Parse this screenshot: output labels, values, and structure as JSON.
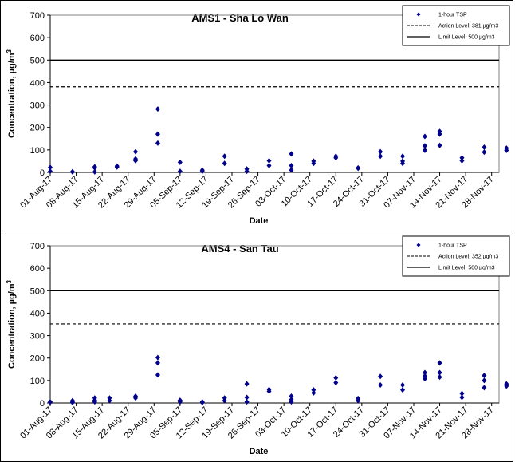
{
  "chart_data": [
    {
      "type": "scatter",
      "title": "AMS1 - Sha Lo Wan",
      "xlabel": "Date",
      "ylabel": "Concentration, µg/m",
      "ylabel_sup": "3",
      "ylim": [
        0,
        700
      ],
      "yticks": [
        "0",
        "100",
        "200",
        "300",
        "400",
        "500",
        "600",
        "700"
      ],
      "xlim": [
        "01-Aug-17",
        "30-Nov-17"
      ],
      "xticks": [
        "01-Aug-17",
        "08-Aug-17",
        "15-Aug-17",
        "22-Aug-17",
        "29-Aug-17",
        "05-Sep-17",
        "12-Sep-17",
        "19-Sep-17",
        "26-Sep-17",
        "03-Oct-17",
        "10-Oct-17",
        "17-Oct-17",
        "24-Oct-17",
        "31-Oct-17",
        "07-Nov-17",
        "14-Nov-17",
        "21-Nov-17",
        "28-Nov-17"
      ],
      "legend": {
        "position": "top-right",
        "entries": [
          {
            "label": "1-hour TSP",
            "style": "marker"
          },
          {
            "label": "Action Level: 381 µg/m3",
            "style": "dashed"
          },
          {
            "label": "Limit Level: 500 µg/m3",
            "style": "solid"
          }
        ]
      },
      "action_level": 381,
      "limit_level": 500,
      "series": [
        {
          "marker_color": "#00008B",
          "points": [
            [
              "2017-08-01",
              22
            ],
            [
              "2017-08-01",
              5
            ],
            [
              "2017-08-07",
              3
            ],
            [
              "2017-08-07",
              2
            ],
            [
              "2017-08-13",
              25
            ],
            [
              "2017-08-13",
              20
            ],
            [
              "2017-08-13",
              2
            ],
            [
              "2017-08-19",
              28
            ],
            [
              "2017-08-19",
              24
            ],
            [
              "2017-08-24",
              92
            ],
            [
              "2017-08-24",
              60
            ],
            [
              "2017-08-24",
              52
            ],
            [
              "2017-08-30",
              282
            ],
            [
              "2017-08-30",
              170
            ],
            [
              "2017-08-30",
              130
            ],
            [
              "2017-09-05",
              45
            ],
            [
              "2017-09-05",
              5
            ],
            [
              "2017-09-11",
              10
            ],
            [
              "2017-09-11",
              5
            ],
            [
              "2017-09-17",
              72
            ],
            [
              "2017-09-17",
              40
            ],
            [
              "2017-09-23",
              15
            ],
            [
              "2017-09-23",
              5
            ],
            [
              "2017-09-29",
              52
            ],
            [
              "2017-09-29",
              30
            ],
            [
              "2017-10-05",
              82
            ],
            [
              "2017-10-05",
              30
            ],
            [
              "2017-10-05",
              10
            ],
            [
              "2017-10-11",
              50
            ],
            [
              "2017-10-11",
              40
            ],
            [
              "2017-10-17",
              72
            ],
            [
              "2017-10-17",
              65
            ],
            [
              "2017-10-23",
              20
            ],
            [
              "2017-10-23",
              18
            ],
            [
              "2017-10-29",
              92
            ],
            [
              "2017-10-29",
              72
            ],
            [
              "2017-11-04",
              72
            ],
            [
              "2017-11-04",
              50
            ],
            [
              "2017-11-04",
              40
            ],
            [
              "2017-11-10",
              160
            ],
            [
              "2017-11-10",
              118
            ],
            [
              "2017-11-10",
              98
            ],
            [
              "2017-11-14",
              182
            ],
            [
              "2017-11-14",
              170
            ],
            [
              "2017-11-14",
              120
            ],
            [
              "2017-11-20",
              65
            ],
            [
              "2017-11-20",
              52
            ],
            [
              "2017-11-26",
              112
            ],
            [
              "2017-11-26",
              90
            ],
            [
              "2017-12-02",
              108
            ],
            [
              "2017-12-02",
              98
            ]
          ]
        }
      ]
    },
    {
      "type": "scatter",
      "title": "AMS4 - San Tau",
      "xlabel": "Date",
      "ylabel": "Concentration, µg/m",
      "ylabel_sup": "3",
      "ylim": [
        0,
        700
      ],
      "yticks": [
        "0",
        "100",
        "200",
        "300",
        "400",
        "500",
        "600",
        "700"
      ],
      "xlim": [
        "01-Aug-17",
        "30-Nov-17"
      ],
      "xticks": [
        "01-Aug-17",
        "08-Aug-17",
        "15-Aug-17",
        "22-Aug-17",
        "29-Aug-17",
        "05-Sep-17",
        "12-Sep-17",
        "19-Sep-17",
        "26-Sep-17",
        "03-Oct-17",
        "10-Oct-17",
        "17-Oct-17",
        "24-Oct-17",
        "31-Oct-17",
        "07-Nov-17",
        "14-Nov-17",
        "21-Nov-17",
        "28-Nov-17"
      ],
      "legend": {
        "position": "top-right",
        "entries": [
          {
            "label": "1-hour TSP",
            "style": "marker"
          },
          {
            "label": "Action Level: 352 µg/m3",
            "style": "dashed"
          },
          {
            "label": "Limit Level: 500 µg/m3",
            "style": "solid"
          }
        ]
      },
      "action_level": 352,
      "limit_level": 500,
      "series": [
        {
          "marker_color": "#00008B",
          "points": [
            [
              "2017-08-01",
              5
            ],
            [
              "2017-08-01",
              3
            ],
            [
              "2017-08-07",
              10
            ],
            [
              "2017-08-07",
              5
            ],
            [
              "2017-08-07",
              2
            ],
            [
              "2017-08-13",
              22
            ],
            [
              "2017-08-13",
              12
            ],
            [
              "2017-08-13",
              5
            ],
            [
              "2017-08-17",
              22
            ],
            [
              "2017-08-17",
              10
            ],
            [
              "2017-08-24",
              30
            ],
            [
              "2017-08-24",
              22
            ],
            [
              "2017-08-30",
              202
            ],
            [
              "2017-08-30",
              178
            ],
            [
              "2017-08-30",
              125
            ],
            [
              "2017-09-05",
              12
            ],
            [
              "2017-09-05",
              5
            ],
            [
              "2017-09-11",
              5
            ],
            [
              "2017-09-11",
              2
            ],
            [
              "2017-09-17",
              22
            ],
            [
              "2017-09-17",
              10
            ],
            [
              "2017-09-23",
              85
            ],
            [
              "2017-09-23",
              25
            ],
            [
              "2017-09-23",
              5
            ],
            [
              "2017-09-29",
              60
            ],
            [
              "2017-09-29",
              52
            ],
            [
              "2017-10-05",
              30
            ],
            [
              "2017-10-05",
              15
            ],
            [
              "2017-10-05",
              5
            ],
            [
              "2017-10-11",
              58
            ],
            [
              "2017-10-11",
              45
            ],
            [
              "2017-10-17",
              112
            ],
            [
              "2017-10-17",
              90
            ],
            [
              "2017-10-23",
              20
            ],
            [
              "2017-10-23",
              10
            ],
            [
              "2017-10-29",
              118
            ],
            [
              "2017-10-29",
              80
            ],
            [
              "2017-11-04",
              80
            ],
            [
              "2017-11-04",
              58
            ],
            [
              "2017-11-10",
              135
            ],
            [
              "2017-11-10",
              120
            ],
            [
              "2017-11-10",
              108
            ],
            [
              "2017-11-14",
              178
            ],
            [
              "2017-11-14",
              135
            ],
            [
              "2017-11-14",
              115
            ],
            [
              "2017-11-20",
              42
            ],
            [
              "2017-11-20",
              25
            ],
            [
              "2017-11-26",
              122
            ],
            [
              "2017-11-26",
              100
            ],
            [
              "2017-11-26",
              68
            ],
            [
              "2017-12-02",
              85
            ],
            [
              "2017-12-02",
              75
            ]
          ]
        }
      ]
    }
  ]
}
